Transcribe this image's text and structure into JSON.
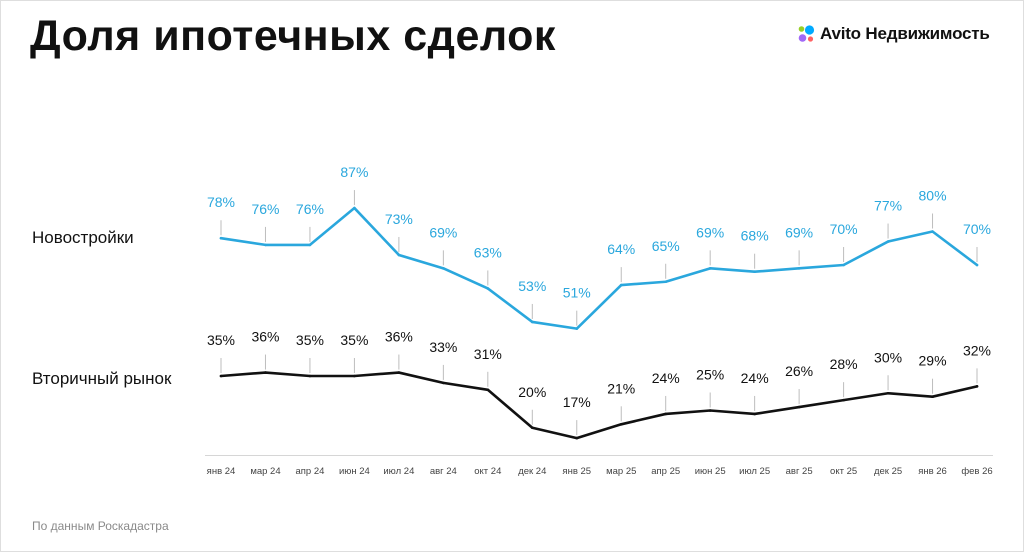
{
  "title": "Доля ипотечных сделок",
  "logo": {
    "text": "Avito Недвижимость",
    "icon": "avito-dots-icon"
  },
  "source": "По данным Роскадастра",
  "colors": {
    "primary": "#2aa7dd",
    "secondary": "#111111",
    "tick_line": "#bdbdbd"
  },
  "chart_data": {
    "type": "line",
    "title": "Доля ипотечных сделок",
    "xlabel": "",
    "ylabel": "",
    "ylim": [
      0,
      100
    ],
    "grid": false,
    "categories": [
      "янв 24",
      "мар 24",
      "апр 24",
      "июн 24",
      "июл 24",
      "авг 24",
      "окт 24",
      "дек 24",
      "янв 25",
      "мар 25",
      "апр 25",
      "июн 25",
      "июл 25",
      "авг 25",
      "окт 25",
      "дек 25",
      "янв 26",
      "фев 26"
    ],
    "series": [
      {
        "name": "Новостройки",
        "values": [
          78,
          76,
          76,
          87,
          73,
          69,
          63,
          53,
          51,
          64,
          65,
          69,
          68,
          69,
          70,
          77,
          80,
          70
        ],
        "labels": [
          "78%",
          "76%",
          "76%",
          "87%",
          "73%",
          "69%",
          "63%",
          "53%",
          "51%",
          "64%",
          "65%",
          "69%",
          "68%",
          "69%",
          "70%",
          "77%",
          "80%",
          "70%"
        ]
      },
      {
        "name": "Вторичный рынок",
        "values": [
          35,
          36,
          35,
          35,
          36,
          33,
          31,
          20,
          17,
          21,
          24,
          25,
          24,
          26,
          28,
          30,
          29,
          32
        ],
        "labels": [
          "35%",
          "36%",
          "35%",
          "35%",
          "36%",
          "33%",
          "31%",
          "20%",
          "17%",
          "21%",
          "24%",
          "25%",
          "24%",
          "26%",
          "28%",
          "30%",
          "29%",
          "32%"
        ]
      }
    ]
  }
}
